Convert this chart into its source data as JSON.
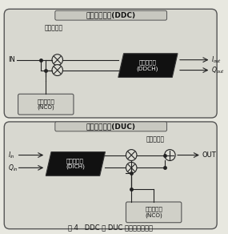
{
  "title": "图 4   DDC 和 DUC 的典型结构框图",
  "ddc_title": "数字下变频器(DDC)",
  "ddc_mixer_label": "正交混频器",
  "ddc_filter_label": "数字抽取链\n(DDCH)",
  "ddc_nco_label": "数控振荡器\n(NCO)",
  "ddc_in": "IN",
  "duc_title": "数字上变频器(DUC)",
  "duc_mixer_label": "正交混频器",
  "duc_filter_label": "数字内插链\n(DICH)",
  "duc_nco_label": "数控振荡器\n(NCO)",
  "duc_out": "OUT",
  "bg": "#e8e8e0",
  "box_fc": "#dcdcd4",
  "box_ec": "#555555",
  "filter_fc": "#111111",
  "line_color": "#222222"
}
